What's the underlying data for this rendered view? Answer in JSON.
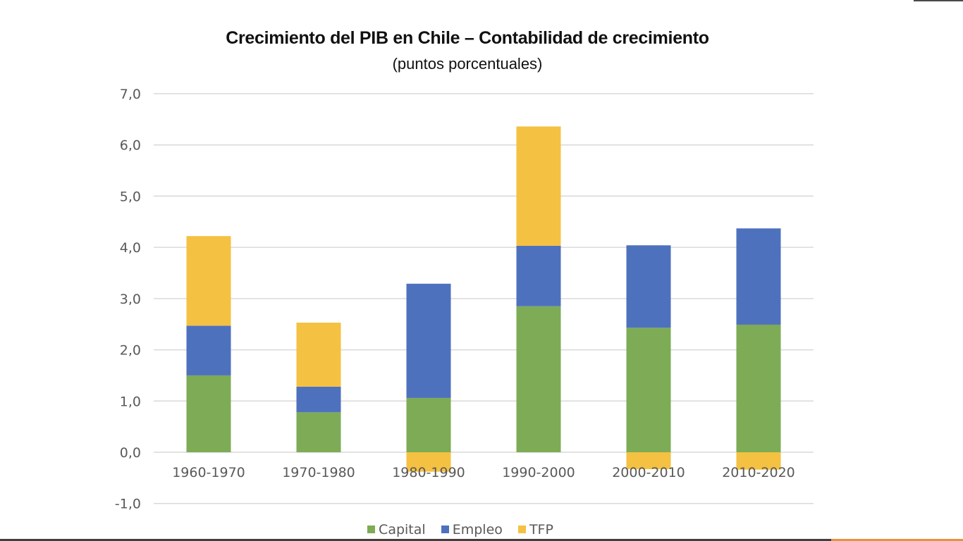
{
  "chart_data": {
    "type": "bar",
    "stacked": true,
    "title": "Crecimiento del PIB en Chile – Contabilidad de crecimiento",
    "subtitle": "(puntos porcentuales)",
    "xlabel": "",
    "ylabel": "",
    "ylim": [
      -1.0,
      7.0
    ],
    "yticks": [
      "7,0",
      "6,0",
      "5,0",
      "4,0",
      "3,0",
      "2,0",
      "1,0",
      "0,0",
      "-1,0"
    ],
    "ytick_values": [
      7,
      6,
      5,
      4,
      3,
      2,
      1,
      0,
      -1
    ],
    "grid": true,
    "legend_position": "bottom",
    "categories": [
      "1960-1970",
      "1970-1980",
      "1980-1990",
      "1990-2000",
      "2000-2010",
      "2010-2020"
    ],
    "series": [
      {
        "name": "Capital",
        "color": "#7eab55",
        "values": [
          1.5,
          0.78,
          1.06,
          2.85,
          2.43,
          2.49
        ]
      },
      {
        "name": "Empleo",
        "color": "#4e71be",
        "values": [
          0.97,
          0.5,
          2.23,
          1.18,
          1.61,
          1.88
        ]
      },
      {
        "name": "TFP",
        "color": "#f4c142",
        "values": [
          1.75,
          1.25,
          -0.38,
          2.33,
          -0.33,
          -0.34
        ]
      }
    ]
  }
}
